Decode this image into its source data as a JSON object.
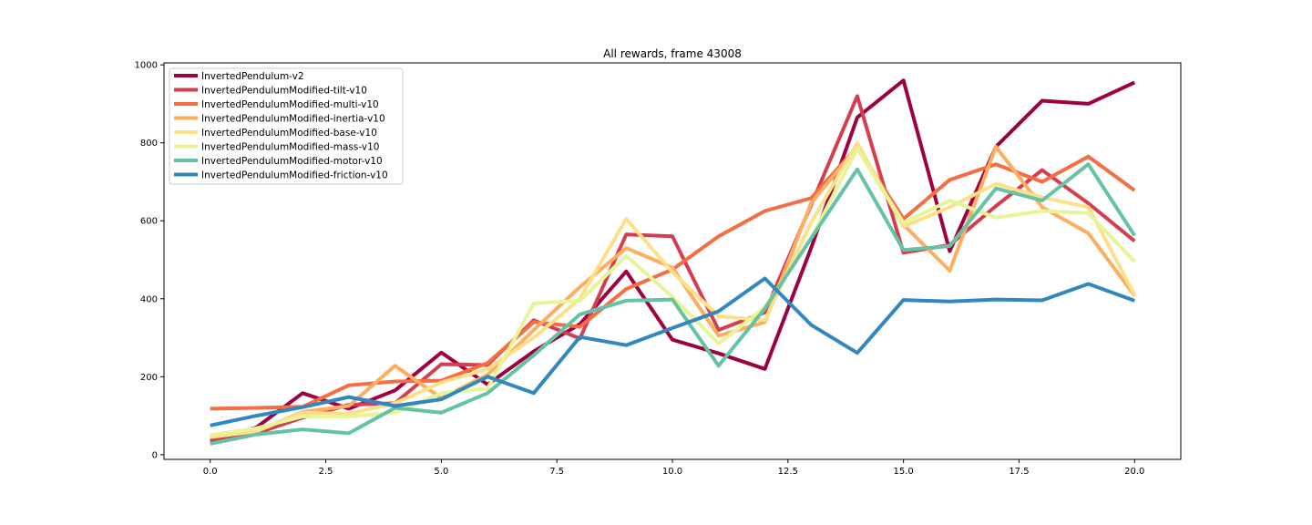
{
  "chart_data": {
    "type": "line",
    "title": "All rewards, frame 43008",
    "xlabel": "",
    "ylabel": "",
    "xlim": [
      -1,
      21
    ],
    "ylim": [
      -12,
      1005
    ],
    "xticks": [
      0.0,
      2.5,
      5.0,
      7.5,
      10.0,
      12.5,
      15.0,
      17.5,
      20.0
    ],
    "xtick_labels": [
      "0.0",
      "2.5",
      "5.0",
      "7.5",
      "10.0",
      "12.5",
      "15.0",
      "17.5",
      "20.0"
    ],
    "yticks": [
      0,
      200,
      400,
      600,
      800,
      1000
    ],
    "ytick_labels": [
      "0",
      "200",
      "400",
      "600",
      "800",
      "1000"
    ],
    "grid": false,
    "legend_position": "top-left",
    "x": [
      0,
      1,
      2,
      3,
      4,
      5,
      6,
      7,
      8,
      9,
      10,
      11,
      12,
      13,
      14,
      15,
      16,
      17,
      18,
      19,
      20
    ],
    "series": [
      {
        "name": "InvertedPendulum-v2",
        "color": "#9e0142",
        "values": [
          35,
          70,
          158,
          118,
          165,
          262,
          180,
          265,
          335,
          470,
          295,
          260,
          220,
          530,
          865,
          960,
          522,
          790,
          908,
          900,
          955
        ]
      },
      {
        "name": "InvertedPendulumModified-tilt-v10",
        "color": "#d53e4f",
        "values": [
          35,
          55,
          95,
          128,
          132,
          232,
          230,
          345,
          298,
          565,
          560,
          320,
          365,
          640,
          920,
          518,
          538,
          638,
          730,
          645,
          548
        ]
      },
      {
        "name": "InvertedPendulumModified-multi-v10",
        "color": "#f46d43",
        "values": [
          118,
          120,
          123,
          178,
          188,
          190,
          235,
          340,
          328,
          425,
          475,
          560,
          625,
          658,
          790,
          605,
          705,
          745,
          700,
          765,
          678
        ]
      },
      {
        "name": "InvertedPendulumModified-inertia-v10",
        "color": "#fdae61",
        "values": [
          45,
          60,
          110,
          125,
          228,
          145,
          205,
          320,
          430,
          530,
          480,
          305,
          340,
          645,
          790,
          590,
          472,
          790,
          635,
          568,
          408
        ]
      },
      {
        "name": "InvertedPendulumModified-base-v10",
        "color": "#fee08b",
        "values": [
          45,
          60,
          108,
          105,
          132,
          185,
          220,
          300,
          400,
          605,
          468,
          355,
          345,
          595,
          800,
          585,
          635,
          695,
          660,
          635,
          410
        ]
      },
      {
        "name": "InvertedPendulumModified-mass-v10",
        "color": "#e6f598",
        "values": [
          50,
          68,
          98,
          98,
          108,
          158,
          170,
          388,
          395,
          510,
          405,
          285,
          378,
          555,
          785,
          595,
          652,
          608,
          625,
          620,
          495
        ]
      },
      {
        "name": "InvertedPendulumModified-motor-v10",
        "color": "#66c2a5",
        "values": [
          28,
          52,
          65,
          55,
          120,
          108,
          158,
          255,
          360,
          395,
          398,
          228,
          375,
          555,
          732,
          525,
          535,
          683,
          652,
          745,
          562
        ]
      },
      {
        "name": "InvertedPendulumModified-friction-v10",
        "color": "#3288bd",
        "values": [
          75,
          100,
          122,
          148,
          125,
          142,
          200,
          158,
          302,
          281,
          325,
          368,
          452,
          333,
          261,
          397,
          393,
          398,
          396,
          438,
          395
        ]
      }
    ]
  }
}
